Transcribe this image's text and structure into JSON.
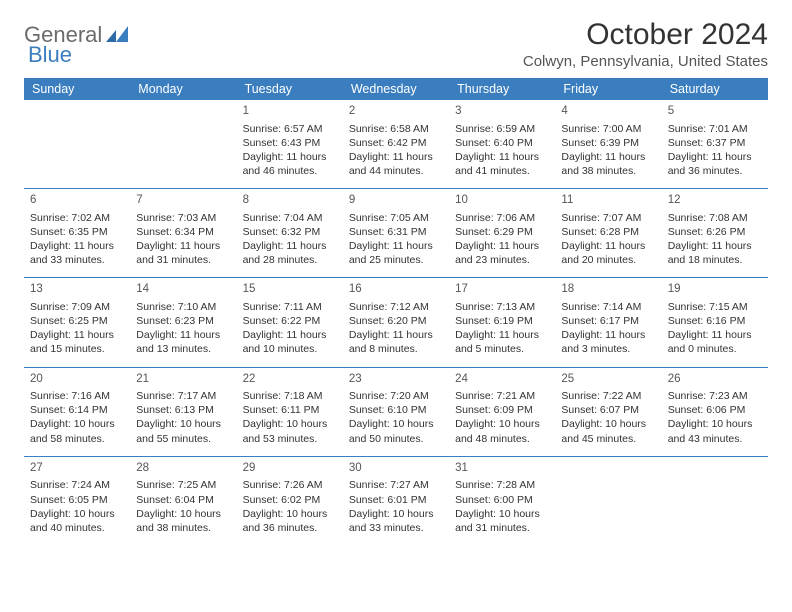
{
  "brand": {
    "part1": "General",
    "part2": "Blue"
  },
  "title": "October 2024",
  "location": "Colwyn, Pennsylvania, United States",
  "colors": {
    "header_bg": "#3b7ec0",
    "header_text": "#ffffff",
    "border": "#3b7ec0",
    "body_text": "#333333",
    "logo_gray": "#6b6b6b",
    "logo_blue": "#3b7ec0"
  },
  "day_headers": [
    "Sunday",
    "Monday",
    "Tuesday",
    "Wednesday",
    "Thursday",
    "Friday",
    "Saturday"
  ],
  "weeks": [
    [
      null,
      null,
      {
        "n": "1",
        "sr": "Sunrise: 6:57 AM",
        "ss": "Sunset: 6:43 PM",
        "dl": "Daylight: 11 hours and 46 minutes."
      },
      {
        "n": "2",
        "sr": "Sunrise: 6:58 AM",
        "ss": "Sunset: 6:42 PM",
        "dl": "Daylight: 11 hours and 44 minutes."
      },
      {
        "n": "3",
        "sr": "Sunrise: 6:59 AM",
        "ss": "Sunset: 6:40 PM",
        "dl": "Daylight: 11 hours and 41 minutes."
      },
      {
        "n": "4",
        "sr": "Sunrise: 7:00 AM",
        "ss": "Sunset: 6:39 PM",
        "dl": "Daylight: 11 hours and 38 minutes."
      },
      {
        "n": "5",
        "sr": "Sunrise: 7:01 AM",
        "ss": "Sunset: 6:37 PM",
        "dl": "Daylight: 11 hours and 36 minutes."
      }
    ],
    [
      {
        "n": "6",
        "sr": "Sunrise: 7:02 AM",
        "ss": "Sunset: 6:35 PM",
        "dl": "Daylight: 11 hours and 33 minutes."
      },
      {
        "n": "7",
        "sr": "Sunrise: 7:03 AM",
        "ss": "Sunset: 6:34 PM",
        "dl": "Daylight: 11 hours and 31 minutes."
      },
      {
        "n": "8",
        "sr": "Sunrise: 7:04 AM",
        "ss": "Sunset: 6:32 PM",
        "dl": "Daylight: 11 hours and 28 minutes."
      },
      {
        "n": "9",
        "sr": "Sunrise: 7:05 AM",
        "ss": "Sunset: 6:31 PM",
        "dl": "Daylight: 11 hours and 25 minutes."
      },
      {
        "n": "10",
        "sr": "Sunrise: 7:06 AM",
        "ss": "Sunset: 6:29 PM",
        "dl": "Daylight: 11 hours and 23 minutes."
      },
      {
        "n": "11",
        "sr": "Sunrise: 7:07 AM",
        "ss": "Sunset: 6:28 PM",
        "dl": "Daylight: 11 hours and 20 minutes."
      },
      {
        "n": "12",
        "sr": "Sunrise: 7:08 AM",
        "ss": "Sunset: 6:26 PM",
        "dl": "Daylight: 11 hours and 18 minutes."
      }
    ],
    [
      {
        "n": "13",
        "sr": "Sunrise: 7:09 AM",
        "ss": "Sunset: 6:25 PM",
        "dl": "Daylight: 11 hours and 15 minutes."
      },
      {
        "n": "14",
        "sr": "Sunrise: 7:10 AM",
        "ss": "Sunset: 6:23 PM",
        "dl": "Daylight: 11 hours and 13 minutes."
      },
      {
        "n": "15",
        "sr": "Sunrise: 7:11 AM",
        "ss": "Sunset: 6:22 PM",
        "dl": "Daylight: 11 hours and 10 minutes."
      },
      {
        "n": "16",
        "sr": "Sunrise: 7:12 AM",
        "ss": "Sunset: 6:20 PM",
        "dl": "Daylight: 11 hours and 8 minutes."
      },
      {
        "n": "17",
        "sr": "Sunrise: 7:13 AM",
        "ss": "Sunset: 6:19 PM",
        "dl": "Daylight: 11 hours and 5 minutes."
      },
      {
        "n": "18",
        "sr": "Sunrise: 7:14 AM",
        "ss": "Sunset: 6:17 PM",
        "dl": "Daylight: 11 hours and 3 minutes."
      },
      {
        "n": "19",
        "sr": "Sunrise: 7:15 AM",
        "ss": "Sunset: 6:16 PM",
        "dl": "Daylight: 11 hours and 0 minutes."
      }
    ],
    [
      {
        "n": "20",
        "sr": "Sunrise: 7:16 AM",
        "ss": "Sunset: 6:14 PM",
        "dl": "Daylight: 10 hours and 58 minutes."
      },
      {
        "n": "21",
        "sr": "Sunrise: 7:17 AM",
        "ss": "Sunset: 6:13 PM",
        "dl": "Daylight: 10 hours and 55 minutes."
      },
      {
        "n": "22",
        "sr": "Sunrise: 7:18 AM",
        "ss": "Sunset: 6:11 PM",
        "dl": "Daylight: 10 hours and 53 minutes."
      },
      {
        "n": "23",
        "sr": "Sunrise: 7:20 AM",
        "ss": "Sunset: 6:10 PM",
        "dl": "Daylight: 10 hours and 50 minutes."
      },
      {
        "n": "24",
        "sr": "Sunrise: 7:21 AM",
        "ss": "Sunset: 6:09 PM",
        "dl": "Daylight: 10 hours and 48 minutes."
      },
      {
        "n": "25",
        "sr": "Sunrise: 7:22 AM",
        "ss": "Sunset: 6:07 PM",
        "dl": "Daylight: 10 hours and 45 minutes."
      },
      {
        "n": "26",
        "sr": "Sunrise: 7:23 AM",
        "ss": "Sunset: 6:06 PM",
        "dl": "Daylight: 10 hours and 43 minutes."
      }
    ],
    [
      {
        "n": "27",
        "sr": "Sunrise: 7:24 AM",
        "ss": "Sunset: 6:05 PM",
        "dl": "Daylight: 10 hours and 40 minutes."
      },
      {
        "n": "28",
        "sr": "Sunrise: 7:25 AM",
        "ss": "Sunset: 6:04 PM",
        "dl": "Daylight: 10 hours and 38 minutes."
      },
      {
        "n": "29",
        "sr": "Sunrise: 7:26 AM",
        "ss": "Sunset: 6:02 PM",
        "dl": "Daylight: 10 hours and 36 minutes."
      },
      {
        "n": "30",
        "sr": "Sunrise: 7:27 AM",
        "ss": "Sunset: 6:01 PM",
        "dl": "Daylight: 10 hours and 33 minutes."
      },
      {
        "n": "31",
        "sr": "Sunrise: 7:28 AM",
        "ss": "Sunset: 6:00 PM",
        "dl": "Daylight: 10 hours and 31 minutes."
      },
      null,
      null
    ]
  ]
}
